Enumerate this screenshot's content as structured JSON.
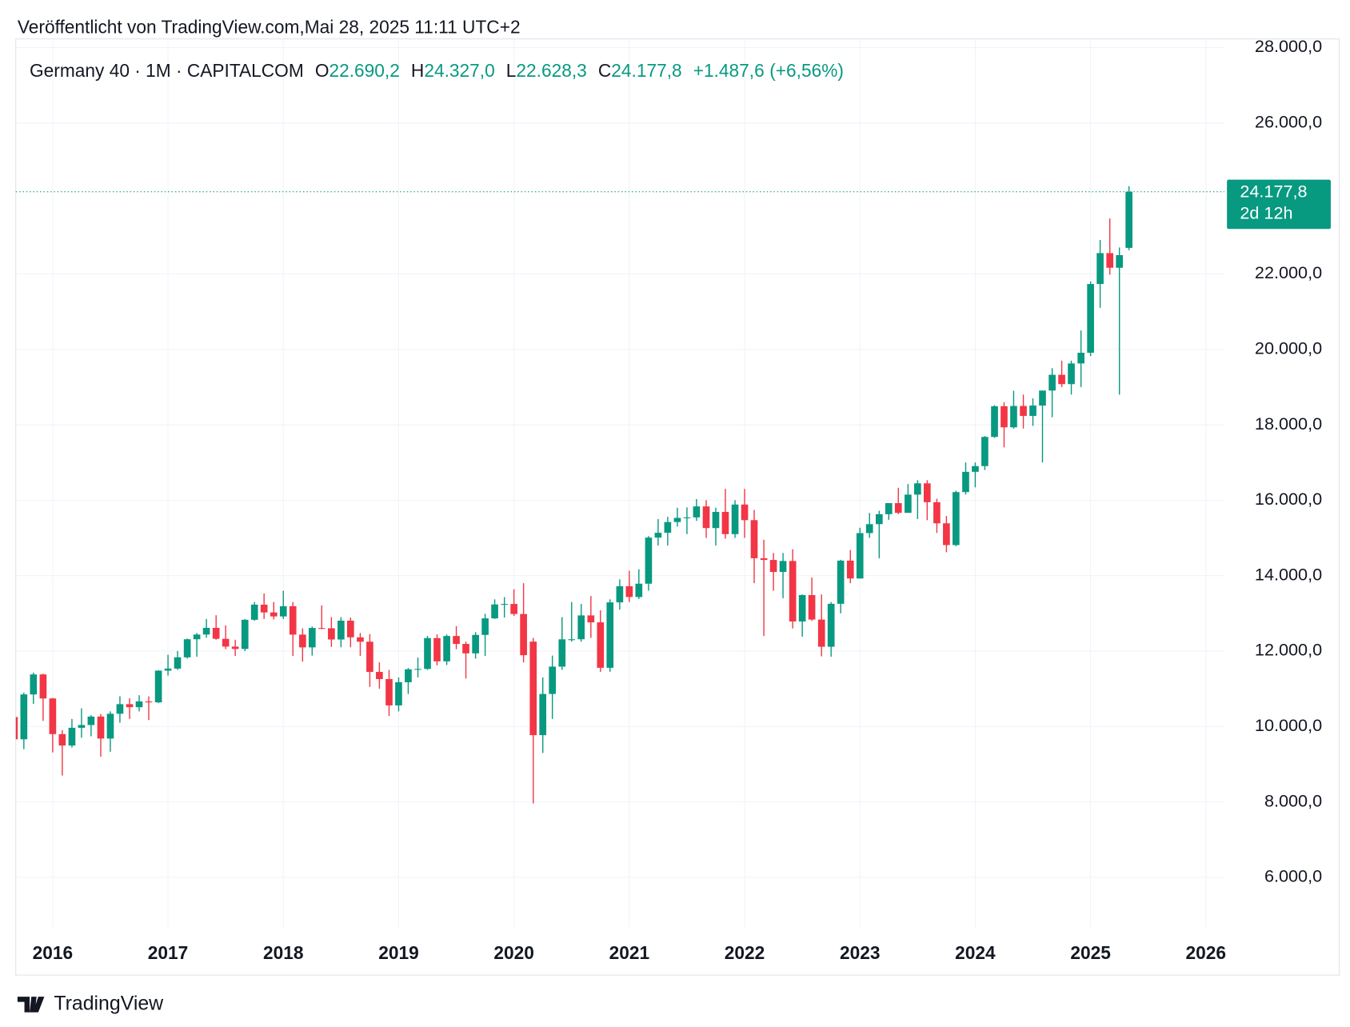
{
  "chart_data": {
    "type": "candlestick",
    "published": "Veröffentlicht von TradingView.com,Mai 28, 2025 11:11 UTC+2",
    "symbol": "Germany 40 · 1M · CAPITALCOM",
    "header": [
      {
        "key": "O",
        "value": 22690.2,
        "label": "22.690,2"
      },
      {
        "key": "H",
        "value": 24327,
        "label": "24.327,0"
      },
      {
        "key": "L",
        "value": 22628.3,
        "label": "22.628,3"
      },
      {
        "key": "C",
        "value": 24177.8,
        "label": "24.177,8"
      }
    ],
    "change": {
      "value": 1487.6,
      "label": "+1.487,6"
    },
    "change_pct": {
      "value": 6.56,
      "label": "(+6,56%)"
    },
    "last_price": {
      "value": 24177.8,
      "label": "24.177,8"
    },
    "countdown": "2d 12h",
    "brand": "TradingView",
    "up_color": "#089981",
    "down_color": "#f23645",
    "grid": true,
    "xlim": [
      2015.68,
      2026.16
    ],
    "xticks": [
      2016,
      2017,
      2018,
      2019,
      2020,
      2021,
      2022,
      2023,
      2024,
      2025,
      2026
    ],
    "ylim": [
      4670,
      28230
    ],
    "yticks": [
      {
        "value": 6000,
        "label": "6.000,0"
      },
      {
        "value": 8000,
        "label": "8.000,0"
      },
      {
        "value": 10000,
        "label": "10.000,0"
      },
      {
        "value": 12000,
        "label": "12.000,0"
      },
      {
        "value": 14000,
        "label": "14.000,0"
      },
      {
        "value": 16000,
        "label": "16.000,0"
      },
      {
        "value": 18000,
        "label": "18.000,0"
      },
      {
        "value": 20000,
        "label": "20.000,0"
      },
      {
        "value": 22000,
        "label": "22.000,0"
      },
      {
        "value": 26000,
        "label": "26.000,0"
      },
      {
        "value": 28000,
        "label": "28.000,0"
      }
    ],
    "x": [
      2015.667,
      2015.75,
      2015.833,
      2015.917,
      2016,
      2016.083,
      2016.167,
      2016.25,
      2016.333,
      2016.417,
      2016.5,
      2016.583,
      2016.667,
      2016.75,
      2016.833,
      2016.917,
      2017,
      2017.083,
      2017.167,
      2017.25,
      2017.333,
      2017.417,
      2017.5,
      2017.583,
      2017.667,
      2017.75,
      2017.833,
      2017.917,
      2018,
      2018.083,
      2018.167,
      2018.25,
      2018.333,
      2018.417,
      2018.5,
      2018.583,
      2018.667,
      2018.75,
      2018.833,
      2018.917,
      2019,
      2019.083,
      2019.167,
      2019.25,
      2019.333,
      2019.417,
      2019.5,
      2019.583,
      2019.667,
      2019.75,
      2019.833,
      2019.917,
      2020,
      2020.083,
      2020.167,
      2020.25,
      2020.333,
      2020.417,
      2020.5,
      2020.583,
      2020.667,
      2020.75,
      2020.833,
      2020.917,
      2021,
      2021.083,
      2021.167,
      2021.25,
      2021.333,
      2021.417,
      2021.5,
      2021.583,
      2021.667,
      2021.75,
      2021.833,
      2021.917,
      2022,
      2022.083,
      2022.167,
      2022.25,
      2022.333,
      2022.417,
      2022.5,
      2022.583,
      2022.667,
      2022.75,
      2022.833,
      2022.917,
      2023,
      2023.083,
      2023.167,
      2023.25,
      2023.333,
      2023.417,
      2023.5,
      2023.583,
      2023.667,
      2023.75,
      2023.833,
      2023.917,
      2024,
      2024.083,
      2024.167,
      2024.25,
      2024.333,
      2024.417,
      2024.5,
      2024.583,
      2024.667,
      2024.75,
      2024.833,
      2024.917,
      2025,
      2025.083,
      2025.167,
      2025.25,
      2025.333
    ],
    "open": [
      10250,
      9660,
      10850,
      11380,
      10743,
      9798,
      9495,
      9965,
      10039,
      10263,
      9680,
      10337,
      10592,
      10511,
      10665,
      10640,
      11481,
      11535,
      11834,
      12313,
      12438,
      12615,
      12325,
      12118,
      12056,
      12829,
      13230,
      13024,
      12918,
      13189,
      12436,
      12097,
      12612,
      12605,
      12306,
      12806,
      12364,
      12247,
      11447,
      11257,
      10559,
      11173,
      11516,
      11526,
      12344,
      11727,
      12399,
      12189,
      11939,
      12428,
      12867,
      13236,
      13249,
      12982,
      12250,
      9770,
      10862,
      11587,
      12311,
      12313,
      12945,
      12761,
      11556,
      13291,
      13719,
      13433,
      13786,
      15008,
      15136,
      15421,
      15531,
      15544,
      15835,
      15261,
      15689,
      15100,
      15885,
      15471,
      14461,
      14415,
      14098,
      14388,
      12784,
      13484,
      12835,
      12114,
      13253,
      14397,
      13924,
      15128,
      15365,
      15629,
      15922,
      15664,
      16148,
      16447,
      15947,
      15387,
      14810,
      16215,
      16752,
      16904,
      17678,
      18492,
      17932,
      18498,
      18235,
      18509,
      18907,
      19325,
      19078,
      19626,
      19909,
      21732,
      22551,
      22163,
      22690.2
    ],
    "high": [
      10400,
      10900,
      11430,
      11400,
      10760,
      9900,
      10200,
      10480,
      10300,
      10330,
      10400,
      10800,
      10750,
      10830,
      10800,
      11490,
      11900,
      12000,
      12330,
      12480,
      12850,
      12950,
      12680,
      12300,
      12850,
      13300,
      13530,
      13300,
      13600,
      13300,
      12600,
      12650,
      13210,
      12900,
      12900,
      12890,
      12480,
      12450,
      11700,
      11500,
      11300,
      11550,
      11830,
      12400,
      12440,
      12440,
      12660,
      12250,
      12500,
      12990,
      13370,
      13430,
      13640,
      13800,
      12350,
      11300,
      11880,
      12900,
      13300,
      13250,
      13460,
      13080,
      13370,
      13900,
      14130,
      14170,
      15050,
      15500,
      15560,
      15800,
      15810,
      16030,
      16000,
      15800,
      16300,
      16000,
      16300,
      15740,
      14950,
      14600,
      14600,
      14700,
      13500,
      13950,
      13500,
      13300,
      14420,
      14680,
      15270,
      15660,
      15720,
      15920,
      16330,
      16430,
      16530,
      16530,
      16040,
      15580,
      16250,
      17000,
      17000,
      17700,
      18520,
      18600,
      18900,
      18800,
      18700,
      18900,
      19500,
      19700,
      19700,
      20500,
      21800,
      22900,
      23470,
      22700,
      24327
    ],
    "low": [
      9330,
      9400,
      10600,
      10150,
      9310,
      8700,
      9440,
      9700,
      9740,
      9200,
      9330,
      10100,
      10200,
      10400,
      10170,
      10620,
      11350,
      11500,
      11800,
      11850,
      12350,
      12300,
      12050,
      11870,
      12000,
      12800,
      12850,
      12840,
      12850,
      11870,
      11720,
      11880,
      12580,
      12110,
      12100,
      12100,
      11870,
      11050,
      11000,
      10280,
      10400,
      10860,
      11300,
      11500,
      11620,
      11630,
      12050,
      11270,
      11800,
      11870,
      12850,
      12890,
      12930,
      11700,
      7960,
      9300,
      10200,
      11500,
      12250,
      12250,
      12350,
      11450,
      11450,
      13100,
      13300,
      13380,
      13600,
      14800,
      14800,
      15300,
      15100,
      15450,
      15000,
      14800,
      14980,
      15000,
      15000,
      13800,
      12400,
      13600,
      13400,
      12600,
      12380,
      12800,
      11860,
      11850,
      13000,
      13800,
      13920,
      15000,
      14460,
      15480,
      15630,
      15700,
      15500,
      15470,
      15130,
      14620,
      14780,
      16150,
      16340,
      16800,
      17650,
      17400,
      17900,
      17900,
      17970,
      17000,
      18200,
      19000,
      18800,
      19000,
      19820,
      21100,
      21980,
      18800,
      22628.3
    ],
    "close": [
      9660,
      10850,
      11380,
      10743,
      9798,
      9495,
      9965,
      10039,
      10263,
      9680,
      10337,
      10592,
      10511,
      10665,
      10640,
      11481,
      11535,
      11834,
      12313,
      12438,
      12615,
      12325,
      12118,
      12056,
      12829,
      13230,
      13024,
      12918,
      13189,
      12436,
      12097,
      12612,
      12605,
      12306,
      12806,
      12364,
      12247,
      11447,
      11257,
      10559,
      11173,
      11516,
      11526,
      12344,
      11727,
      12399,
      12189,
      11939,
      12428,
      12867,
      13236,
      13249,
      12982,
      11890,
      9770,
      10862,
      11587,
      12311,
      12313,
      12945,
      12761,
      11556,
      13291,
      13719,
      13433,
      13786,
      15008,
      15136,
      15421,
      15531,
      15544,
      15835,
      15261,
      15689,
      15100,
      15885,
      15471,
      14461,
      14415,
      14098,
      14388,
      12784,
      13484,
      12835,
      12114,
      13253,
      14397,
      13924,
      15128,
      15365,
      15629,
      15922,
      15664,
      16148,
      16447,
      15947,
      15387,
      14810,
      16215,
      16752,
      16904,
      17678,
      18492,
      17932,
      18498,
      18235,
      18509,
      18907,
      19325,
      19078,
      19626,
      19909,
      21732,
      22551,
      22163,
      22497,
      24177.8
    ]
  }
}
